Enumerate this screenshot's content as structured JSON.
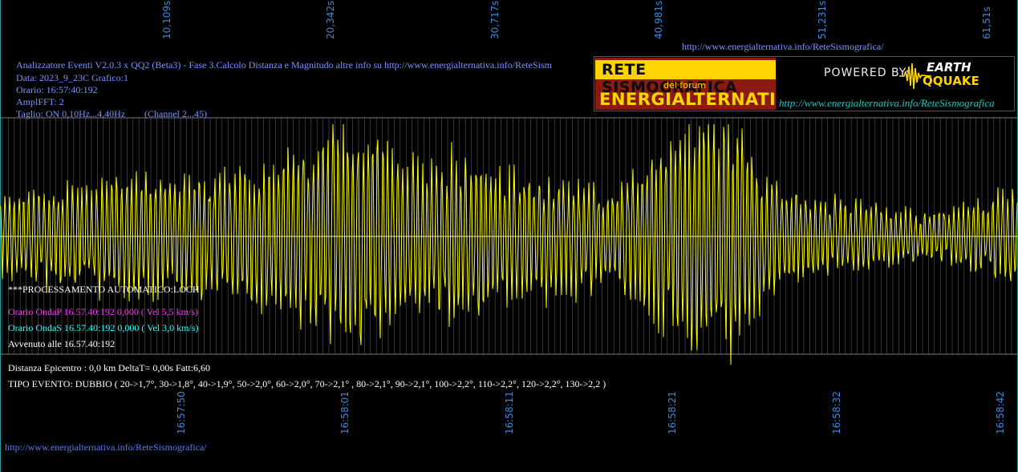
{
  "header": {
    "line1": "Analizzatore Eventi V2.0.3 x QQ2 (Beta3) - Fase 3.Calcolo Distanza e Magnitudo altre info su http://www.energialternativa.info/ReteSism",
    "data": "Data: 2023_9_23C Grafico:1",
    "orario": "Orario: 16:57:40:192",
    "ampl": "AmplFFT: 2",
    "taglio": "Taglio: ON 0,10Hz...4,40Hz",
    "channel": "(Channel 2...45)"
  },
  "top_url": "http://www.energialternativa.info/ReteSismografica/",
  "bottom_url": "http://www.energialternativa.info/ReteSismografica/",
  "logo": {
    "title": "RETE SISMOGRAFICA",
    "subtitle": "del forum",
    "brand": "ENERGIALTERNATIVA",
    "powered": "POWERED BY:",
    "earth": "EARTH",
    "qquake": "QQUAKE",
    "url": "http://www.energialternativa.info/ReteSismografica"
  },
  "processing": {
    "title": "***PROCESSAMENTO AUTOMATICO:LOCH",
    "onda_p": "Orario OndaP 16.57.40:192  0,000 ( Vel 5,5 km/s)",
    "onda_s": "Orario OndaS 16.57.40:192  0,000 ( Vel 3,0 km/s)",
    "avvenuto": "Avvenuto alle 16.57.40:192"
  },
  "result": {
    "distanza": "Distanza Epicentro : 0,0 km DeltaT= 0,00s  Fatt:6,60",
    "tipo": "TIPO EVENTO: DUBBIO ( 20->1,7°, 30->1,8°, 40->1,9°, 50->2,0°, 60->2,0°, 70->2,1° , 80->2,1°, 90->2,1°, 100->2,2°, 110->2,2°, 120->2,2°, 130->2,2 )"
  },
  "colors": {
    "trace": "#ffff00",
    "grid": "#5a5a5a",
    "axis_labels": "#3d86d8",
    "background": "#000000"
  },
  "chart_data": {
    "type": "line",
    "title": "",
    "xlabel": "",
    "ylabel": "",
    "top_ticks": [
      "10,109s",
      "20,342s",
      "30,717s",
      "40,981s",
      "51,231s",
      "61,51s"
    ],
    "bottom_ticks": [
      "16:57:50",
      "16:58:01",
      "16:58:11",
      "16:58:21",
      "16:58:32",
      "16:58:42"
    ],
    "seconds_range": [
      0,
      62
    ],
    "amplitude_range": [
      -1,
      1
    ],
    "envelope": [
      [
        0,
        0.35
      ],
      [
        3,
        0.4
      ],
      [
        6,
        0.45
      ],
      [
        8,
        0.55
      ],
      [
        10,
        0.5
      ],
      [
        14,
        0.55
      ],
      [
        17,
        0.65
      ],
      [
        21,
        0.95
      ],
      [
        23,
        0.85
      ],
      [
        26,
        0.6
      ],
      [
        28,
        0.7
      ],
      [
        31,
        0.55
      ],
      [
        34,
        0.5
      ],
      [
        37,
        0.4
      ],
      [
        39,
        0.55
      ],
      [
        41,
        0.85
      ],
      [
        43,
        1.0
      ],
      [
        45,
        0.9
      ],
      [
        47,
        0.5
      ],
      [
        49,
        0.35
      ],
      [
        51,
        0.3
      ],
      [
        54,
        0.25
      ],
      [
        57,
        0.18
      ],
      [
        60,
        0.3
      ],
      [
        61,
        0.45
      ],
      [
        62,
        0.4
      ]
    ],
    "grid": true
  }
}
